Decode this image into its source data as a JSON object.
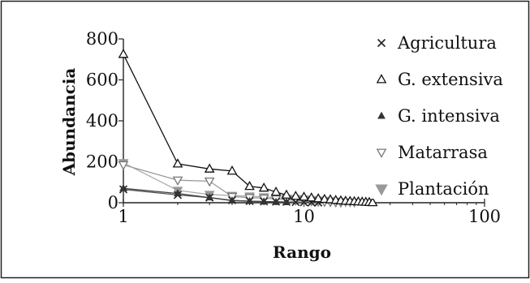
{
  "chart_data": {
    "type": "line",
    "title": "",
    "xlabel": "Rango",
    "ylabel": "Abundancia",
    "xscale": "log",
    "xlim": [
      1,
      100
    ],
    "ylim": [
      0,
      800
    ],
    "x_ticks": [
      1,
      10,
      100
    ],
    "y_ticks": [
      0,
      200,
      400,
      600,
      800
    ],
    "grid": false,
    "legend_position": "right",
    "series": [
      {
        "name": "Agricultura",
        "marker": "x",
        "color": "#222222",
        "line_color": "#555555",
        "x": [
          1,
          2,
          3,
          4,
          5,
          6,
          7,
          8,
          9,
          10,
          11,
          12
        ],
        "y": [
          65,
          38,
          25,
          12,
          8,
          6,
          5,
          4,
          3,
          2,
          1,
          1
        ]
      },
      {
        "name": "G. extensiva",
        "marker": "triangle-up-open",
        "color": "#111111",
        "line_color": "#111111",
        "x": [
          1,
          2,
          3,
          4,
          5,
          6,
          7,
          8,
          9,
          10,
          11,
          12,
          13,
          14,
          15,
          16,
          17,
          18,
          19,
          20,
          21,
          22,
          23,
          24
        ],
        "y": [
          725,
          190,
          165,
          155,
          80,
          72,
          52,
          38,
          32,
          28,
          24,
          20,
          17,
          15,
          12,
          10,
          8,
          7,
          6,
          5,
          4,
          3,
          2,
          1
        ]
      },
      {
        "name": "G. intensiva",
        "marker": "triangle-up-filled-small",
        "color": "#333333",
        "line_color": "#444444",
        "x": [
          1,
          2,
          3,
          4,
          5,
          6,
          7,
          8
        ],
        "y": [
          70,
          45,
          25,
          10,
          7,
          5,
          3,
          2
        ]
      },
      {
        "name": "Matarrasa",
        "marker": "triangle-down-open",
        "color": "#777777",
        "line_color": "#999999",
        "x": [
          1,
          2,
          3,
          4,
          5,
          6,
          7,
          8,
          9,
          10,
          11,
          12,
          13,
          14,
          15,
          16
        ],
        "y": [
          185,
          110,
          105,
          30,
          25,
          22,
          18,
          15,
          12,
          10,
          8,
          6,
          5,
          4,
          3,
          2
        ]
      },
      {
        "name": "Plantación",
        "marker": "triangle-down-filled",
        "color": "#999999",
        "line_color": "#aaaaaa",
        "x": [
          1,
          2,
          3,
          4,
          5,
          6,
          7,
          8,
          9,
          10,
          11,
          12,
          13,
          14,
          15,
          16,
          17,
          18,
          19
        ],
        "y": [
          195,
          60,
          40,
          35,
          32,
          28,
          25,
          22,
          20,
          18,
          15,
          13,
          11,
          9,
          7,
          5,
          4,
          3,
          2
        ]
      }
    ]
  }
}
